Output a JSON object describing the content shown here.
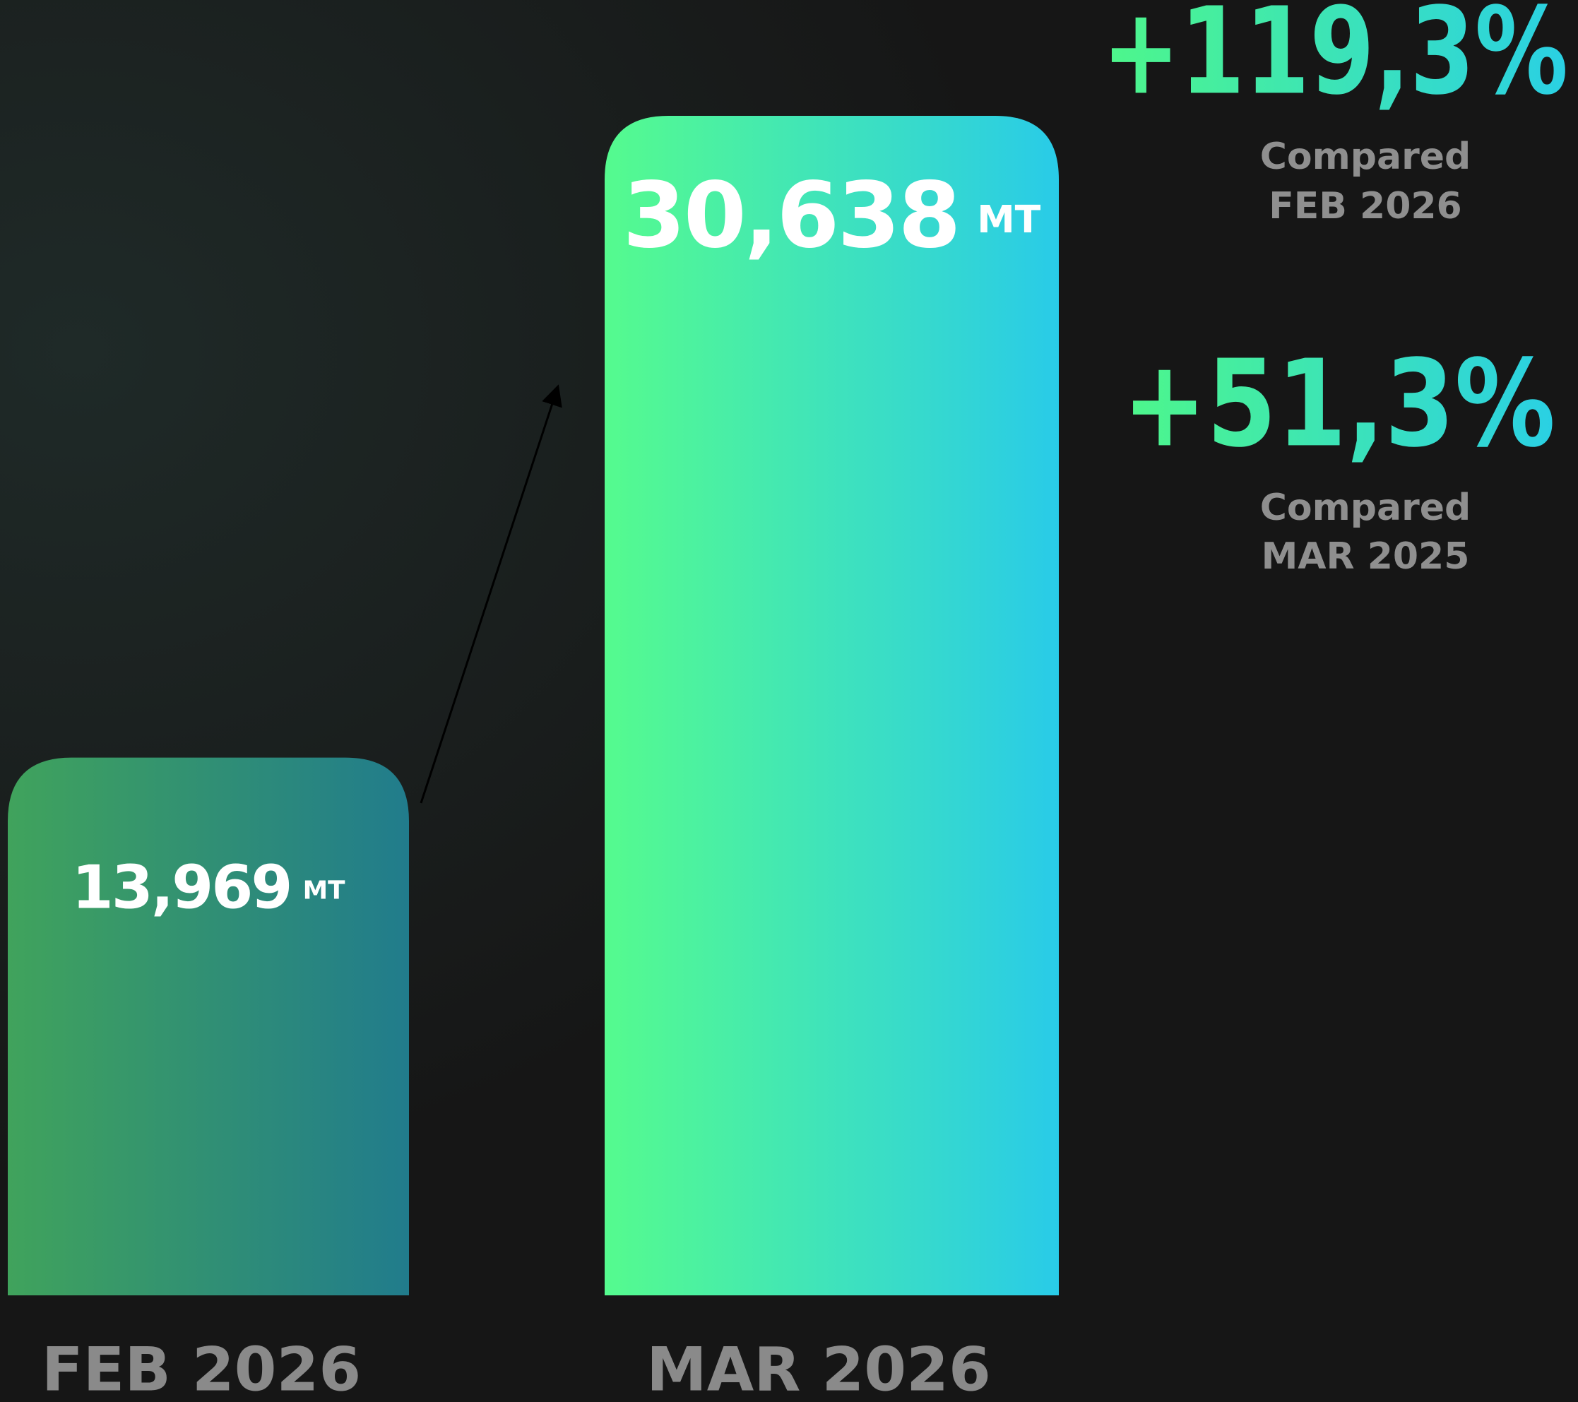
{
  "chart_data": {
    "type": "bar",
    "categories": [
      "FEB 2026",
      "MAR 2026"
    ],
    "values": [
      13969,
      30638
    ],
    "value_labels": [
      "13,969",
      "30,638"
    ],
    "unit": "MT",
    "colors": [
      [
        "#40a35c",
        "#217c8c"
      ],
      [
        "#55fb8e",
        "#29cbe8"
      ]
    ],
    "annotations": [
      {
        "label": "+119,3%",
        "note": [
          "Compared",
          "FEB 2026"
        ]
      },
      {
        "label": "+51,3%",
        "note": [
          "Compared",
          "MAR 2025"
        ]
      }
    ]
  }
}
